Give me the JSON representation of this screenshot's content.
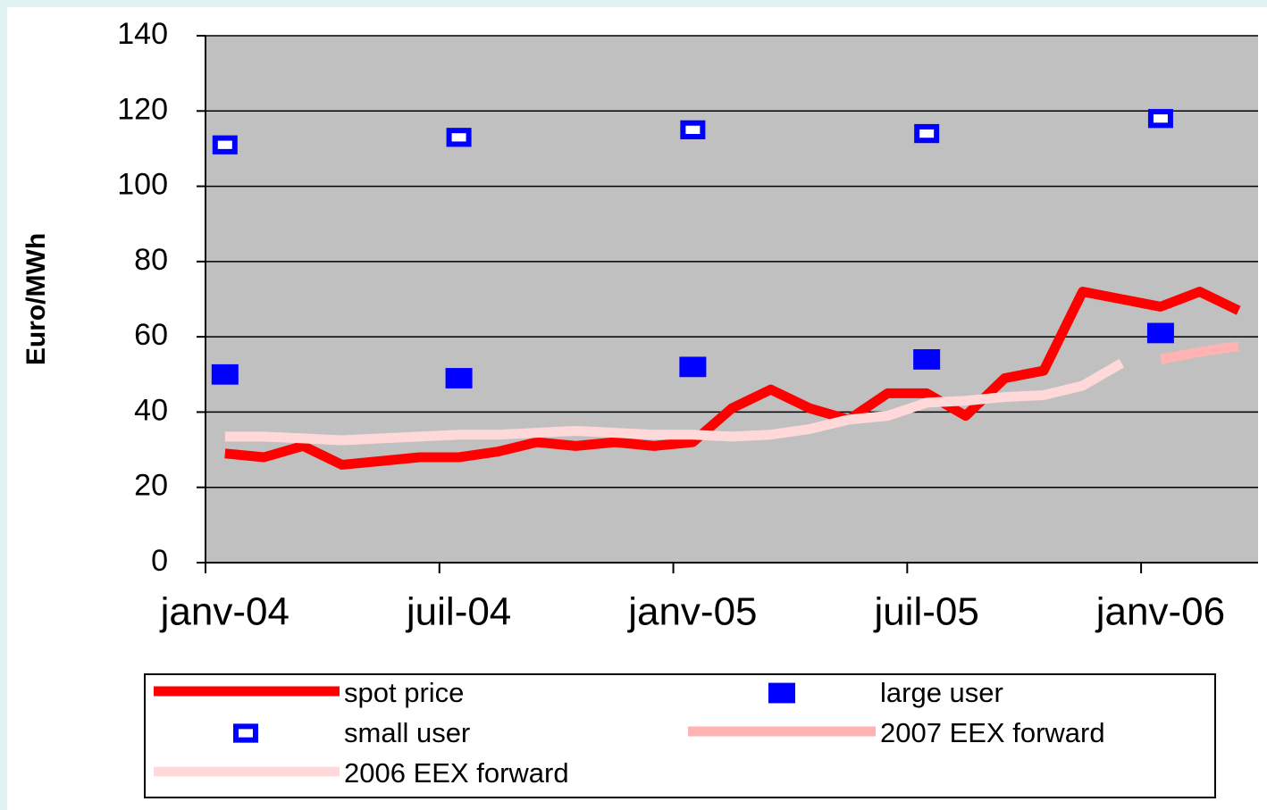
{
  "chart_data": {
    "type": "line",
    "y_label": "Euro/MWh",
    "categories": [
      "janv-04",
      null,
      null,
      null,
      null,
      null,
      "juil-04",
      null,
      null,
      null,
      null,
      null,
      "janv-05",
      null,
      null,
      null,
      null,
      null,
      "juil-05",
      null,
      null,
      null,
      null,
      null,
      "janv-06",
      null,
      null
    ],
    "ylim": [
      0,
      140
    ],
    "yticks": [
      0,
      20,
      40,
      60,
      80,
      100,
      120,
      140
    ],
    "grid": true,
    "legend": "bottom",
    "series": [
      {
        "name": "spot price",
        "color": "#ff0000",
        "style": "line",
        "width": 11,
        "values": [
          29,
          28,
          31,
          26,
          27,
          28,
          28,
          29.5,
          32,
          31,
          32,
          31,
          32,
          41,
          46,
          41,
          38,
          45,
          45,
          39,
          49,
          51,
          72,
          70,
          68,
          72,
          67
        ]
      },
      {
        "name": "large user",
        "color": "#0000ff",
        "style": "square-filled",
        "values": [
          50,
          null,
          null,
          null,
          null,
          null,
          49,
          null,
          null,
          null,
          null,
          null,
          52,
          null,
          null,
          null,
          null,
          null,
          54,
          null,
          null,
          null,
          null,
          null,
          61,
          null,
          null
        ]
      },
      {
        "name": "small user",
        "color": "#0000ff",
        "style": "square-hollow",
        "values": [
          111,
          null,
          null,
          null,
          null,
          null,
          113,
          null,
          null,
          null,
          null,
          null,
          115,
          null,
          null,
          null,
          null,
          null,
          114,
          null,
          null,
          null,
          null,
          null,
          118,
          null,
          null
        ]
      },
      {
        "name": "2007 EEX forward",
        "color": "#ffb3b3",
        "style": "line",
        "width": 11,
        "values": [
          null,
          null,
          null,
          null,
          null,
          null,
          null,
          null,
          null,
          null,
          null,
          null,
          null,
          null,
          null,
          null,
          null,
          null,
          null,
          null,
          null,
          null,
          null,
          null,
          54,
          56,
          57.5
        ]
      },
      {
        "name": "2006 EEX forward",
        "color": "#ffd9d9",
        "style": "line",
        "width": 11,
        "values": [
          33.5,
          33.5,
          33,
          32.5,
          33,
          33.5,
          34,
          34,
          34.5,
          35,
          34.5,
          34,
          34,
          33.5,
          34,
          35.5,
          38,
          39,
          42.5,
          43,
          44,
          44.5,
          47,
          53,
          null,
          null,
          null
        ]
      }
    ]
  }
}
